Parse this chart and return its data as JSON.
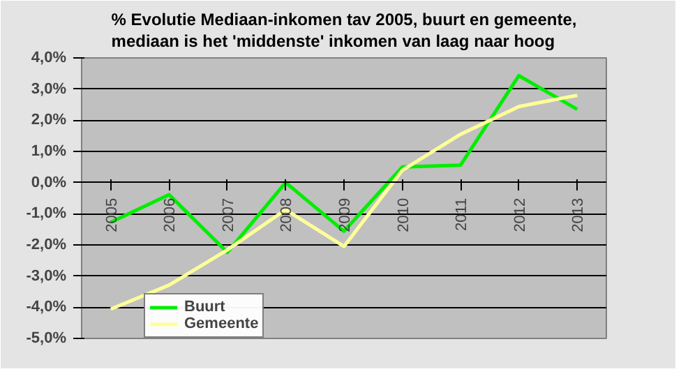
{
  "chart_data": {
    "type": "line",
    "title": "% Evolutie Mediaan-inkomen tav 2005, buurt en gemeente,\nmediaan is het 'middenste' inkomen van  laag naar hoog",
    "categories": [
      "2005",
      "2006",
      "2007",
      "2008",
      "2009",
      "2010",
      "2011",
      "2012",
      "2013"
    ],
    "series": [
      {
        "name": "Buurt",
        "color": "#00ee00",
        "values": [
          -1.27,
          -0.39,
          -2.24,
          0.0,
          -1.56,
          0.5,
          0.56,
          3.43,
          2.35
        ]
      },
      {
        "name": "Gemeente",
        "color": "#ffff99",
        "values": [
          -4.06,
          -3.29,
          -2.16,
          -0.87,
          -2.05,
          0.39,
          1.55,
          2.44,
          2.8
        ]
      }
    ],
    "ylim": [
      -5,
      4
    ],
    "yticks": [
      {
        "value": -5,
        "label": "-5,0%"
      },
      {
        "value": -4,
        "label": "-4,0%"
      },
      {
        "value": -3,
        "label": "-3,0%"
      },
      {
        "value": -2,
        "label": "-2,0%"
      },
      {
        "value": -1,
        "label": "-1,0%"
      },
      {
        "value": 0,
        "label": "0,0%"
      },
      {
        "value": 1,
        "label": "1,0%"
      },
      {
        "value": 2,
        "label": "2,0%"
      },
      {
        "value": 3,
        "label": "3,0%"
      },
      {
        "value": 4,
        "label": "4,0%"
      }
    ],
    "grid": "y",
    "legend": "bottom left",
    "marker": "none",
    "line_style": "solid"
  }
}
